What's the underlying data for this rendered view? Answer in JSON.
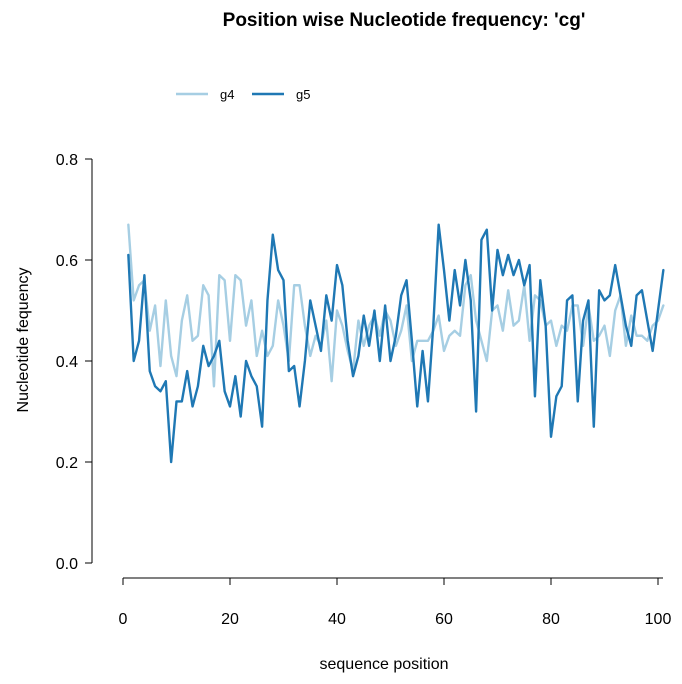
{
  "chart_data": {
    "type": "line",
    "title": "Position wise Nucleotide frequency:  'cg'",
    "xlabel": "sequence position",
    "ylabel": "Nucleotide fequency",
    "xlim": [
      1,
      101
    ],
    "ylim": [
      0,
      0.8
    ],
    "xticks": [
      0,
      20,
      40,
      60,
      80,
      100
    ],
    "yticks": [
      0.0,
      0.2,
      0.4,
      0.6,
      0.8
    ],
    "xtick_labels": [
      "0",
      "20",
      "40",
      "60",
      "80",
      "100"
    ],
    "ytick_labels": [
      "0.0",
      "0.2",
      "0.4",
      "0.6",
      "0.8"
    ],
    "grid": false,
    "legend_position": "top-left",
    "x": [
      1,
      2,
      3,
      4,
      5,
      6,
      7,
      8,
      9,
      10,
      11,
      12,
      13,
      14,
      15,
      16,
      17,
      18,
      19,
      20,
      21,
      22,
      23,
      24,
      25,
      26,
      27,
      28,
      29,
      30,
      31,
      32,
      33,
      34,
      35,
      36,
      37,
      38,
      39,
      40,
      41,
      42,
      43,
      44,
      45,
      46,
      47,
      48,
      49,
      50,
      51,
      52,
      53,
      54,
      55,
      56,
      57,
      58,
      59,
      60,
      61,
      62,
      63,
      64,
      65,
      66,
      67,
      68,
      69,
      70,
      71,
      72,
      73,
      74,
      75,
      76,
      77,
      78,
      79,
      80,
      81,
      82,
      83,
      84,
      85,
      86,
      87,
      88,
      89,
      90,
      91,
      92,
      93,
      94,
      95,
      96,
      97,
      98,
      99,
      100,
      101
    ],
    "series": [
      {
        "name": "g4",
        "color": "#a6cee3",
        "values": [
          0.67,
          0.52,
          0.55,
          0.56,
          0.46,
          0.51,
          0.39,
          0.52,
          0.41,
          0.37,
          0.48,
          0.53,
          0.44,
          0.45,
          0.55,
          0.53,
          0.35,
          0.57,
          0.56,
          0.44,
          0.57,
          0.56,
          0.47,
          0.52,
          0.41,
          0.46,
          0.41,
          0.43,
          0.52,
          0.47,
          0.4,
          0.55,
          0.55,
          0.47,
          0.41,
          0.45,
          0.43,
          0.48,
          0.36,
          0.5,
          0.47,
          0.42,
          0.38,
          0.48,
          0.43,
          0.47,
          0.49,
          0.45,
          0.5,
          0.48,
          0.43,
          0.46,
          0.51,
          0.4,
          0.44,
          0.44,
          0.44,
          0.46,
          0.49,
          0.42,
          0.45,
          0.46,
          0.45,
          0.55,
          0.57,
          0.48,
          0.44,
          0.4,
          0.5,
          0.51,
          0.46,
          0.54,
          0.47,
          0.48,
          0.55,
          0.44,
          0.53,
          0.52,
          0.47,
          0.48,
          0.43,
          0.47,
          0.46,
          0.51,
          0.51,
          0.43,
          0.51,
          0.44,
          0.45,
          0.47,
          0.41,
          0.5,
          0.53,
          0.43,
          0.49,
          0.45,
          0.45,
          0.44,
          0.47,
          0.48,
          0.51
        ]
      },
      {
        "name": "g5",
        "color": "#1f78b4",
        "values": [
          0.61,
          0.4,
          0.44,
          0.57,
          0.38,
          0.35,
          0.34,
          0.36,
          0.2,
          0.32,
          0.32,
          0.38,
          0.31,
          0.35,
          0.43,
          0.39,
          0.41,
          0.44,
          0.34,
          0.31,
          0.37,
          0.29,
          0.4,
          0.37,
          0.35,
          0.27,
          0.52,
          0.65,
          0.58,
          0.56,
          0.38,
          0.39,
          0.31,
          0.4,
          0.52,
          0.47,
          0.42,
          0.53,
          0.48,
          0.59,
          0.55,
          0.44,
          0.37,
          0.41,
          0.49,
          0.43,
          0.5,
          0.4,
          0.51,
          0.4,
          0.45,
          0.53,
          0.56,
          0.44,
          0.31,
          0.42,
          0.32,
          0.47,
          0.67,
          0.58,
          0.48,
          0.58,
          0.51,
          0.6,
          0.52,
          0.3,
          0.64,
          0.66,
          0.5,
          0.62,
          0.57,
          0.61,
          0.57,
          0.6,
          0.55,
          0.59,
          0.33,
          0.56,
          0.47,
          0.25,
          0.33,
          0.35,
          0.52,
          0.53,
          0.32,
          0.48,
          0.52,
          0.27,
          0.54,
          0.52,
          0.53,
          0.59,
          0.53,
          0.47,
          0.43,
          0.53,
          0.54,
          0.48,
          0.42,
          0.5,
          0.58
        ]
      }
    ]
  }
}
